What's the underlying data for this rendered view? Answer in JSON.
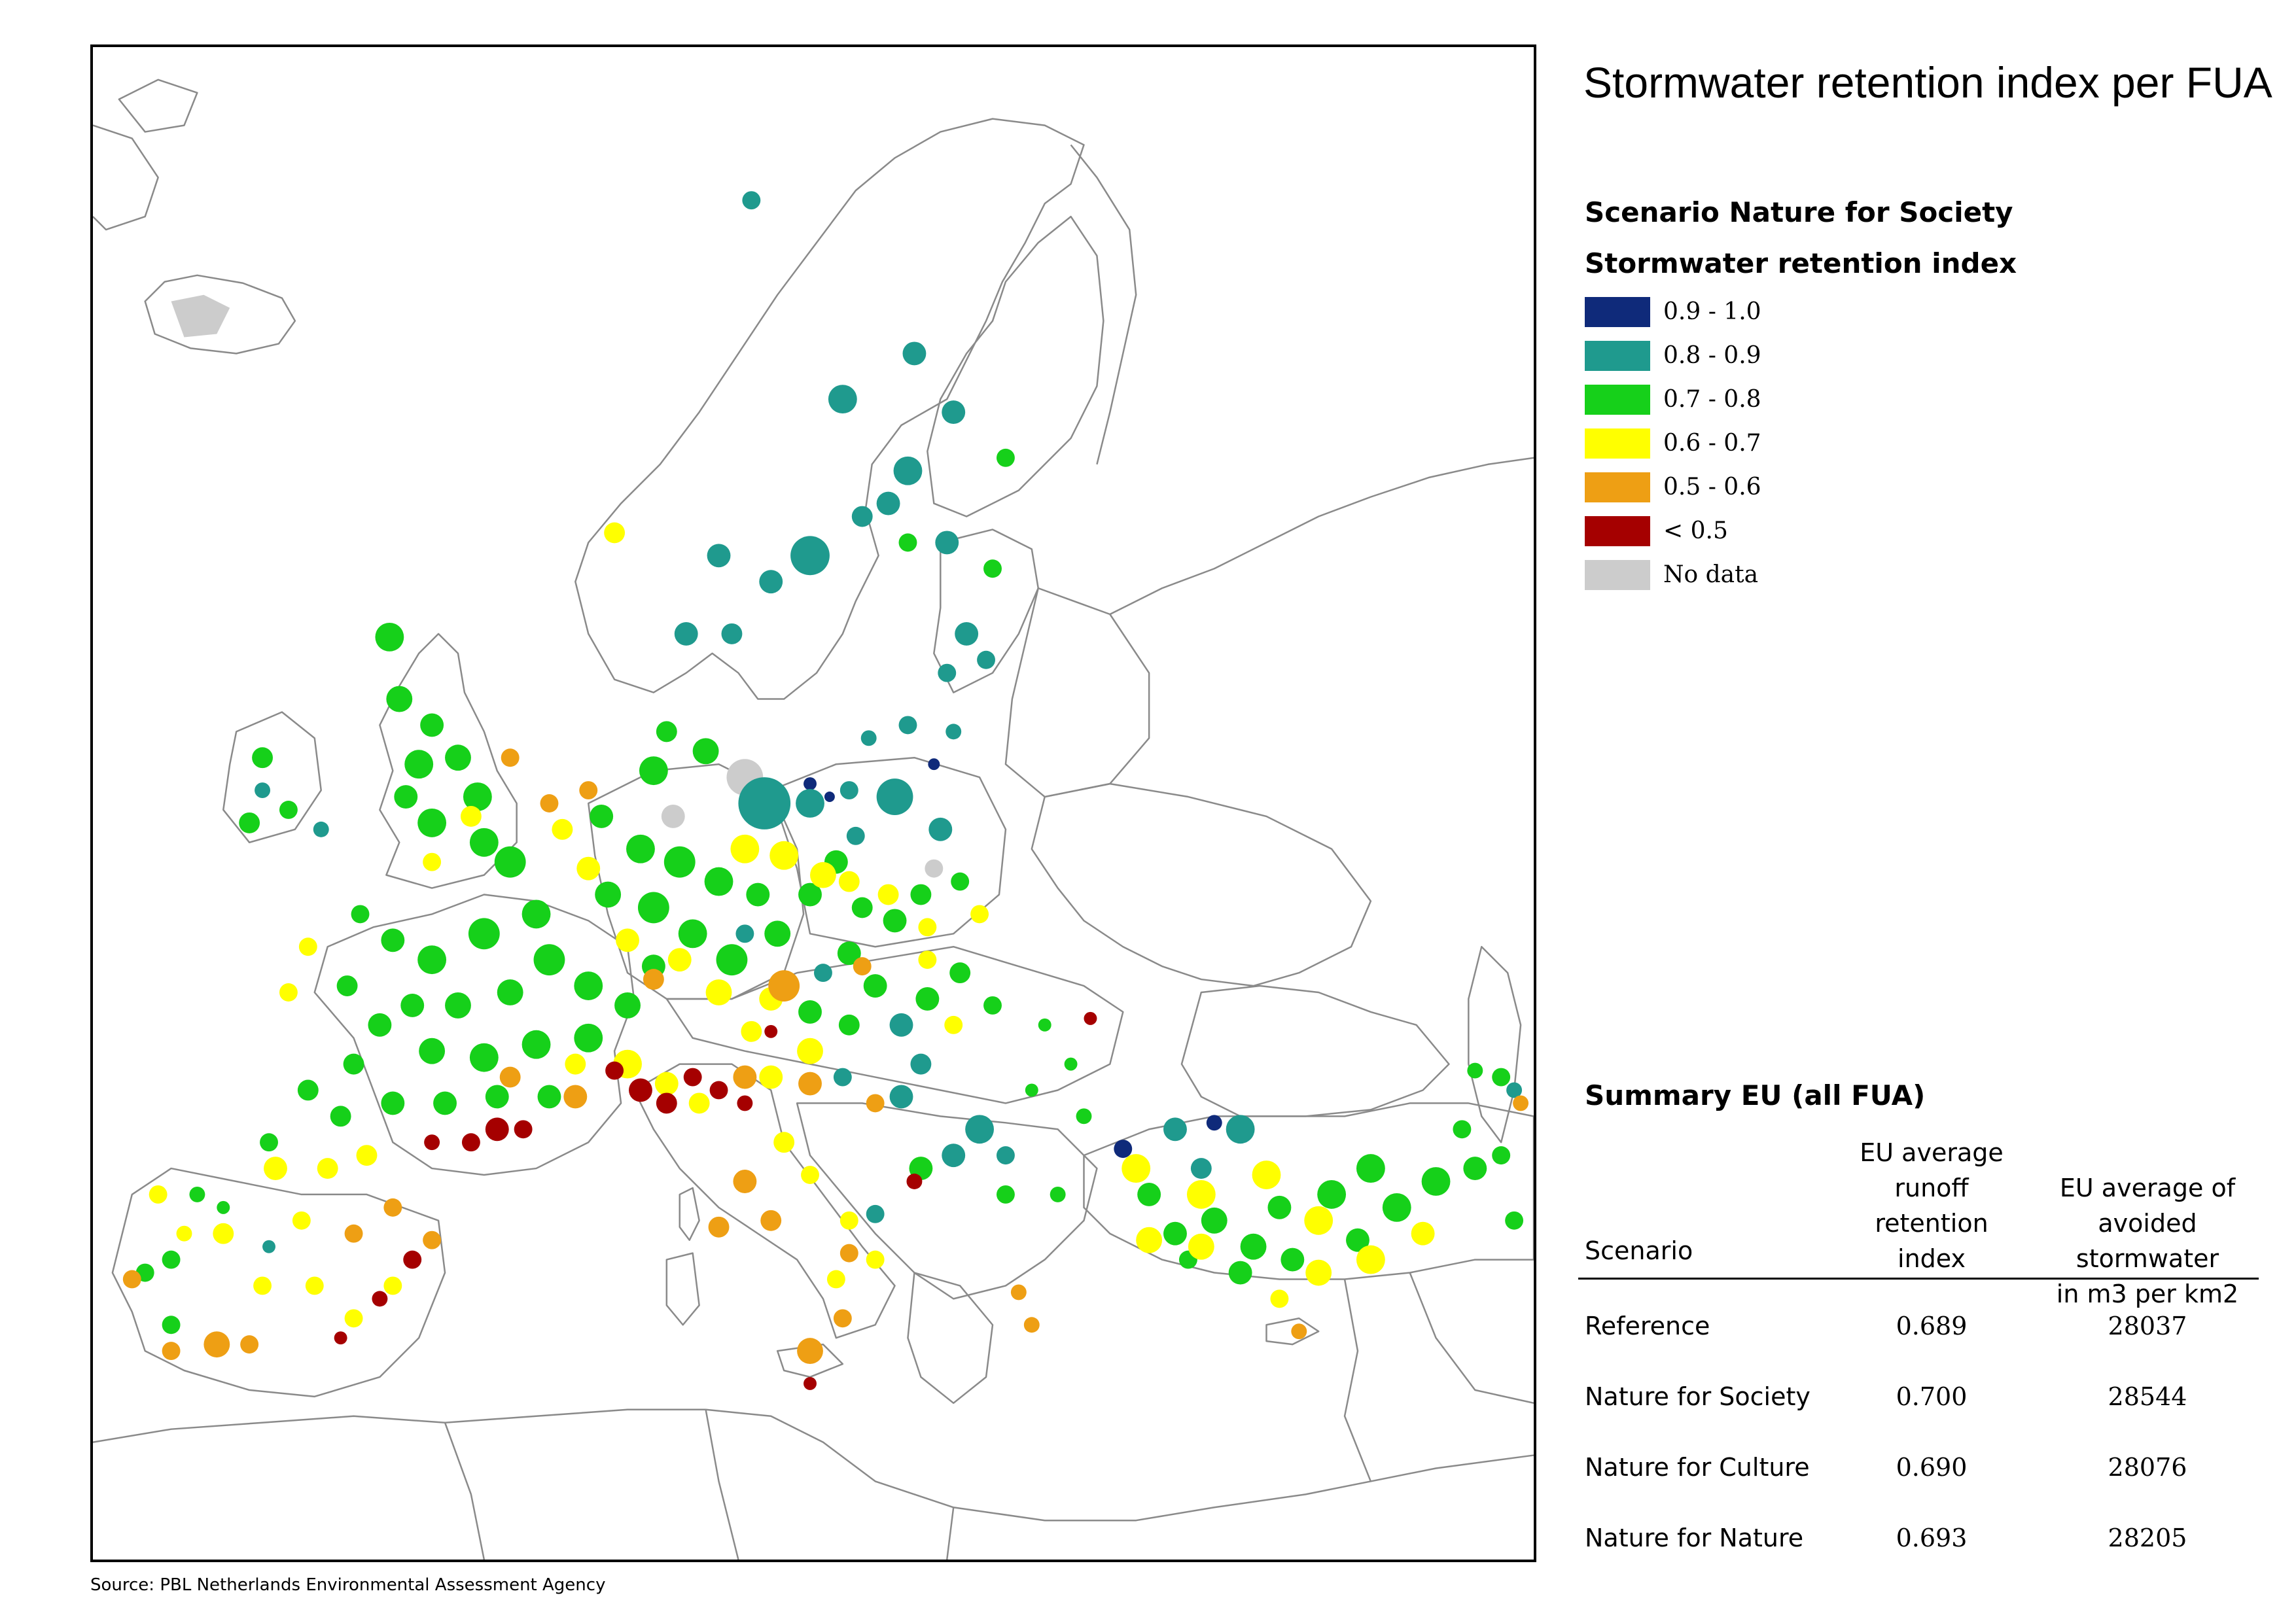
{
  "title": "Stormwater retention index per FUA",
  "scenario_heading": "Scenario Nature for Society",
  "legend": {
    "title": "Stormwater retention index",
    "items": [
      {
        "label": "0.9 - 1.0",
        "color": "#0f2a7a"
      },
      {
        "label": "0.8 - 0.9",
        "color": "#1f9a8e"
      },
      {
        "label": "0.7 - 0.8",
        "color": "#16d01a"
      },
      {
        "label": "0.6 - 0.7",
        "color": "#ffff00"
      },
      {
        "label": "0.5 - 0.6",
        "color": "#ee9f14"
      },
      {
        "label": "< 0.5",
        "color": "#a50000"
      },
      {
        "label": "No data",
        "color": "#cccccc"
      }
    ]
  },
  "summary": {
    "title": "Summary EU (all FUA)",
    "columns": {
      "scenario": "Scenario",
      "index": "EU average\nrunoff\nretention\nindex",
      "avoided": "EU average of\navoided stormwater\nin m3 per km2"
    },
    "rows": [
      {
        "scenario": "Reference",
        "index": "0.689",
        "avoided": "28037"
      },
      {
        "scenario": "Nature for Society",
        "index": "0.700",
        "avoided": "28544"
      },
      {
        "scenario": "Nature for Culture",
        "index": "0.690",
        "avoided": "28076"
      },
      {
        "scenario": "Nature for Nature",
        "index": "0.693",
        "avoided": "28205"
      }
    ]
  },
  "source": "Source: PBL Netherlands Environmental Assessment Agency"
}
